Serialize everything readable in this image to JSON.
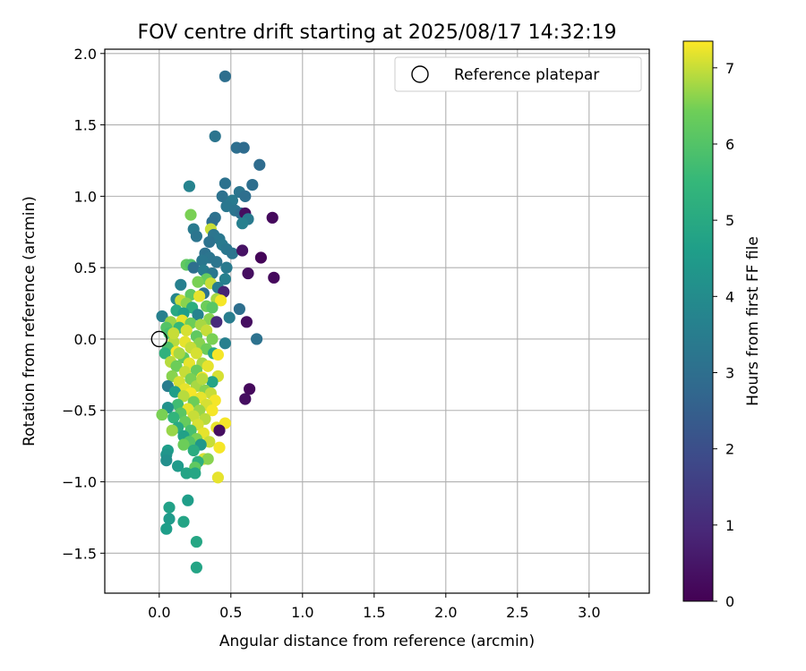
{
  "chart_data": {
    "type": "scatter",
    "title": "FOV centre drift starting at 2025/08/17 14:32:19",
    "xlabel": "Angular distance from reference (arcmin)",
    "ylabel": "Rotation from reference (arcmin)",
    "xlim": [
      -0.38,
      3.42
    ],
    "ylim": [
      -1.78,
      2.03
    ],
    "x_ticks": [
      "0.0",
      "0.5",
      "1.0",
      "1.5",
      "2.0",
      "2.5",
      "3.0"
    ],
    "x_tick_values": [
      0,
      0.5,
      1.0,
      1.5,
      2.0,
      2.5,
      3.0
    ],
    "y_ticks": [
      "2.0",
      "1.5",
      "1.0",
      "0.5",
      "0.0",
      "−0.5",
      "−1.0",
      "−1.5"
    ],
    "y_tick_values": [
      2.0,
      1.5,
      1.0,
      0.5,
      0.0,
      -0.5,
      -1.0,
      -1.5
    ],
    "grid": true,
    "legend": {
      "position": "top-right",
      "entries": [
        "Reference platepar"
      ]
    },
    "reference_point": {
      "x": 0.0,
      "y": 0.0
    },
    "colorbar": {
      "label": "Hours from first FF file",
      "min": 0,
      "max": 7.35,
      "colormap": "viridis",
      "ticks": [
        "0",
        "1",
        "2",
        "3",
        "4",
        "5",
        "6",
        "7"
      ],
      "tick_values": [
        0,
        1,
        2,
        3,
        4,
        5,
        6,
        7
      ]
    },
    "points": [
      {
        "x": 0.46,
        "y": 1.84,
        "t": 3.0
      },
      {
        "x": 0.39,
        "y": 1.42,
        "t": 3.2
      },
      {
        "x": 0.54,
        "y": 1.34,
        "t": 3.0
      },
      {
        "x": 0.59,
        "y": 1.34,
        "t": 2.9
      },
      {
        "x": 0.7,
        "y": 1.22,
        "t": 2.9
      },
      {
        "x": 0.46,
        "y": 1.09,
        "t": 3.1
      },
      {
        "x": 0.65,
        "y": 1.08,
        "t": 3.0
      },
      {
        "x": 0.21,
        "y": 1.07,
        "t": 3.7
      },
      {
        "x": 0.56,
        "y": 1.03,
        "t": 3.2
      },
      {
        "x": 0.6,
        "y": 1.0,
        "t": 3.0
      },
      {
        "x": 0.44,
        "y": 1.0,
        "t": 3.1
      },
      {
        "x": 0.51,
        "y": 0.97,
        "t": 3.4
      },
      {
        "x": 0.47,
        "y": 0.93,
        "t": 3.3
      },
      {
        "x": 0.53,
        "y": 0.9,
        "t": 3.2
      },
      {
        "x": 0.57,
        "y": 0.88,
        "t": 3.0
      },
      {
        "x": 0.6,
        "y": 0.88,
        "t": 0.3
      },
      {
        "x": 0.62,
        "y": 0.84,
        "t": 3.4
      },
      {
        "x": 0.79,
        "y": 0.85,
        "t": 0.2
      },
      {
        "x": 0.39,
        "y": 0.85,
        "t": 3.1
      },
      {
        "x": 0.37,
        "y": 0.82,
        "t": 3.0
      },
      {
        "x": 0.58,
        "y": 0.81,
        "t": 3.6
      },
      {
        "x": 0.22,
        "y": 0.87,
        "t": 6.5
      },
      {
        "x": 0.24,
        "y": 0.77,
        "t": 3.4
      },
      {
        "x": 0.36,
        "y": 0.77,
        "t": 7.0
      },
      {
        "x": 0.26,
        "y": 0.72,
        "t": 3.2
      },
      {
        "x": 0.38,
        "y": 0.73,
        "t": 3.2
      },
      {
        "x": 0.42,
        "y": 0.7,
        "t": 3.3
      },
      {
        "x": 0.35,
        "y": 0.68,
        "t": 3.1
      },
      {
        "x": 0.44,
        "y": 0.66,
        "t": 3.4
      },
      {
        "x": 0.47,
        "y": 0.63,
        "t": 3.3
      },
      {
        "x": 0.51,
        "y": 0.6,
        "t": 3.2
      },
      {
        "x": 0.58,
        "y": 0.62,
        "t": 0.4
      },
      {
        "x": 0.32,
        "y": 0.6,
        "t": 3.1
      },
      {
        "x": 0.35,
        "y": 0.57,
        "t": 3.2
      },
      {
        "x": 0.71,
        "y": 0.57,
        "t": 0.1
      },
      {
        "x": 0.3,
        "y": 0.55,
        "t": 3.3
      },
      {
        "x": 0.4,
        "y": 0.54,
        "t": 3.2
      },
      {
        "x": 0.19,
        "y": 0.52,
        "t": 6.2
      },
      {
        "x": 0.22,
        "y": 0.52,
        "t": 6.0
      },
      {
        "x": 0.47,
        "y": 0.5,
        "t": 3.4
      },
      {
        "x": 0.24,
        "y": 0.5,
        "t": 3.0
      },
      {
        "x": 0.31,
        "y": 0.48,
        "t": 3.5
      },
      {
        "x": 0.37,
        "y": 0.46,
        "t": 3.3
      },
      {
        "x": 0.62,
        "y": 0.46,
        "t": 0.3
      },
      {
        "x": 0.8,
        "y": 0.43,
        "t": 0.2
      },
      {
        "x": 0.46,
        "y": 0.42,
        "t": 3.6
      },
      {
        "x": 0.33,
        "y": 0.42,
        "t": 6.3
      },
      {
        "x": 0.27,
        "y": 0.4,
        "t": 6.5
      },
      {
        "x": 0.15,
        "y": 0.38,
        "t": 3.6
      },
      {
        "x": 0.36,
        "y": 0.39,
        "t": 7.0
      },
      {
        "x": 0.41,
        "y": 0.36,
        "t": 3.5
      },
      {
        "x": 0.45,
        "y": 0.33,
        "t": 0.8
      },
      {
        "x": 0.31,
        "y": 0.32,
        "t": 3.1
      },
      {
        "x": 0.22,
        "y": 0.31,
        "t": 6.2
      },
      {
        "x": 0.28,
        "y": 0.3,
        "t": 7.2
      },
      {
        "x": 0.12,
        "y": 0.28,
        "t": 3.8
      },
      {
        "x": 0.15,
        "y": 0.27,
        "t": 7.0
      },
      {
        "x": 0.4,
        "y": 0.28,
        "t": 6.8
      },
      {
        "x": 0.43,
        "y": 0.27,
        "t": 7.3
      },
      {
        "x": 0.19,
        "y": 0.25,
        "t": 6.6
      },
      {
        "x": 0.33,
        "y": 0.23,
        "t": 6.4
      },
      {
        "x": 0.23,
        "y": 0.22,
        "t": 5.2
      },
      {
        "x": 0.37,
        "y": 0.22,
        "t": 6.1
      },
      {
        "x": 0.56,
        "y": 0.21,
        "t": 3.0
      },
      {
        "x": 0.12,
        "y": 0.2,
        "t": 5.0
      },
      {
        "x": 0.17,
        "y": 0.18,
        "t": 4.6
      },
      {
        "x": 0.27,
        "y": 0.17,
        "t": 3.7
      },
      {
        "x": 0.02,
        "y": 0.16,
        "t": 3.6
      },
      {
        "x": 0.49,
        "y": 0.15,
        "t": 3.5
      },
      {
        "x": 0.35,
        "y": 0.14,
        "t": 6.6
      },
      {
        "x": 0.16,
        "y": 0.13,
        "t": 7.2
      },
      {
        "x": 0.4,
        "y": 0.12,
        "t": 1.0
      },
      {
        "x": 0.61,
        "y": 0.12,
        "t": 0.3
      },
      {
        "x": 0.08,
        "y": 0.12,
        "t": 6.7
      },
      {
        "x": 0.22,
        "y": 0.11,
        "t": 6.4
      },
      {
        "x": 0.29,
        "y": 0.1,
        "t": 6.8
      },
      {
        "x": 0.05,
        "y": 0.08,
        "t": 6.0
      },
      {
        "x": 0.14,
        "y": 0.08,
        "t": 5.5
      },
      {
        "x": 0.19,
        "y": 0.06,
        "t": 7.1
      },
      {
        "x": 0.33,
        "y": 0.06,
        "t": 7.0
      },
      {
        "x": 0.07,
        "y": 0.04,
        "t": 5.8
      },
      {
        "x": 0.26,
        "y": 0.02,
        "t": 6.2
      },
      {
        "x": 0.37,
        "y": 0.0,
        "t": 6.5
      },
      {
        "x": 0.68,
        "y": 0.0,
        "t": 3.1
      },
      {
        "x": 0.1,
        "y": -0.02,
        "t": 6.9
      },
      {
        "x": 0.18,
        "y": -0.02,
        "t": 7.2
      },
      {
        "x": 0.28,
        "y": -0.03,
        "t": 6.6
      },
      {
        "x": 0.46,
        "y": -0.03,
        "t": 3.6
      },
      {
        "x": 0.06,
        "y": -0.06,
        "t": 5.9
      },
      {
        "x": 0.22,
        "y": -0.06,
        "t": 7.0
      },
      {
        "x": 0.33,
        "y": -0.07,
        "t": 6.4
      },
      {
        "x": 0.12,
        "y": -0.09,
        "t": 7.3
      },
      {
        "x": 0.04,
        "y": -0.1,
        "t": 5.3
      },
      {
        "x": 0.26,
        "y": -0.1,
        "t": 7.1
      },
      {
        "x": 0.38,
        "y": -0.1,
        "t": 4.9
      },
      {
        "x": 0.41,
        "y": -0.11,
        "t": 7.3
      },
      {
        "x": 0.17,
        "y": -0.13,
        "t": 6.2
      },
      {
        "x": 0.08,
        "y": -0.16,
        "t": 6.9
      },
      {
        "x": 0.21,
        "y": -0.17,
        "t": 7.2
      },
      {
        "x": 0.3,
        "y": -0.17,
        "t": 6.8
      },
      {
        "x": 0.12,
        "y": -0.19,
        "t": 6.4
      },
      {
        "x": 0.34,
        "y": -0.19,
        "t": 7.2
      },
      {
        "x": 0.26,
        "y": -0.22,
        "t": 6.3
      },
      {
        "x": 0.18,
        "y": -0.23,
        "t": 7.0
      },
      {
        "x": 0.41,
        "y": -0.26,
        "t": 7.1
      },
      {
        "x": 0.09,
        "y": -0.26,
        "t": 6.6
      },
      {
        "x": 0.3,
        "y": -0.27,
        "t": 7.3
      },
      {
        "x": 0.22,
        "y": -0.28,
        "t": 6.5
      },
      {
        "x": 0.14,
        "y": -0.3,
        "t": 7.1
      },
      {
        "x": 0.37,
        "y": -0.3,
        "t": 4.8
      },
      {
        "x": 0.06,
        "y": -0.33,
        "t": 3.5
      },
      {
        "x": 0.26,
        "y": -0.33,
        "t": 6.8
      },
      {
        "x": 0.18,
        "y": -0.35,
        "t": 7.2
      },
      {
        "x": 0.32,
        "y": -0.36,
        "t": 6.6
      },
      {
        "x": 0.63,
        "y": -0.35,
        "t": 0.2
      },
      {
        "x": 0.11,
        "y": -0.37,
        "t": 4.6
      },
      {
        "x": 0.22,
        "y": -0.38,
        "t": 7.3
      },
      {
        "x": 0.36,
        "y": -0.38,
        "t": 7.0
      },
      {
        "x": 0.17,
        "y": -0.4,
        "t": 6.9
      },
      {
        "x": 0.29,
        "y": -0.41,
        "t": 7.2
      },
      {
        "x": 0.6,
        "y": -0.42,
        "t": 0.3
      },
      {
        "x": 0.39,
        "y": -0.43,
        "t": 7.3
      },
      {
        "x": 0.24,
        "y": -0.44,
        "t": 6.4
      },
      {
        "x": 0.13,
        "y": -0.46,
        "t": 5.7
      },
      {
        "x": 0.33,
        "y": -0.46,
        "t": 7.1
      },
      {
        "x": 0.06,
        "y": -0.48,
        "t": 4.2
      },
      {
        "x": 0.2,
        "y": -0.49,
        "t": 7.2
      },
      {
        "x": 0.28,
        "y": -0.5,
        "t": 6.7
      },
      {
        "x": 0.37,
        "y": -0.5,
        "t": 7.3
      },
      {
        "x": 0.15,
        "y": -0.52,
        "t": 6.1
      },
      {
        "x": 0.02,
        "y": -0.53,
        "t": 6.5
      },
      {
        "x": 0.24,
        "y": -0.54,
        "t": 7.0
      },
      {
        "x": 0.1,
        "y": -0.55,
        "t": 5.4
      },
      {
        "x": 0.32,
        "y": -0.56,
        "t": 6.9
      },
      {
        "x": 0.18,
        "y": -0.58,
        "t": 6.3
      },
      {
        "x": 0.46,
        "y": -0.59,
        "t": 7.3
      },
      {
        "x": 0.27,
        "y": -0.6,
        "t": 7.1
      },
      {
        "x": 0.13,
        "y": -0.62,
        "t": 5.0
      },
      {
        "x": 0.4,
        "y": -0.62,
        "t": 7.2
      },
      {
        "x": 0.09,
        "y": -0.64,
        "t": 6.7
      },
      {
        "x": 0.22,
        "y": -0.64,
        "t": 5.8
      },
      {
        "x": 0.42,
        "y": -0.64,
        "t": 0.3
      },
      {
        "x": 0.31,
        "y": -0.66,
        "t": 7.2
      },
      {
        "x": 0.17,
        "y": -0.68,
        "t": 4.7
      },
      {
        "x": 0.26,
        "y": -0.7,
        "t": 6.5
      },
      {
        "x": 0.35,
        "y": -0.72,
        "t": 7.0
      },
      {
        "x": 0.21,
        "y": -0.72,
        "t": 6.0
      },
      {
        "x": 0.29,
        "y": -0.74,
        "t": 4.4
      },
      {
        "x": 0.17,
        "y": -0.74,
        "t": 6.4
      },
      {
        "x": 0.42,
        "y": -0.76,
        "t": 7.3
      },
      {
        "x": 0.24,
        "y": -0.78,
        "t": 5.1
      },
      {
        "x": 0.06,
        "y": -0.78,
        "t": 4.6
      },
      {
        "x": 0.05,
        "y": -0.81,
        "t": 4.3
      },
      {
        "x": 0.05,
        "y": -0.85,
        "t": 4.1
      },
      {
        "x": 0.31,
        "y": -0.84,
        "t": 7.1
      },
      {
        "x": 0.34,
        "y": -0.84,
        "t": 6.6
      },
      {
        "x": 0.27,
        "y": -0.86,
        "t": 5.2
      },
      {
        "x": 0.13,
        "y": -0.89,
        "t": 4.5
      },
      {
        "x": 0.25,
        "y": -0.9,
        "t": 6.2
      },
      {
        "x": 0.19,
        "y": -0.94,
        "t": 4.8
      },
      {
        "x": 0.25,
        "y": -0.94,
        "t": 4.9
      },
      {
        "x": 0.41,
        "y": -0.97,
        "t": 7.2
      },
      {
        "x": 0.2,
        "y": -1.13,
        "t": 4.6
      },
      {
        "x": 0.07,
        "y": -1.18,
        "t": 4.7
      },
      {
        "x": 0.07,
        "y": -1.26,
        "t": 4.5
      },
      {
        "x": 0.17,
        "y": -1.28,
        "t": 4.8
      },
      {
        "x": 0.05,
        "y": -1.33,
        "t": 4.6
      },
      {
        "x": 0.26,
        "y": -1.42,
        "t": 4.9
      },
      {
        "x": 0.26,
        "y": -1.6,
        "t": 4.8
      },
      {
        "x": 0.3,
        "y": -0.28,
        "t": 6.9
      },
      {
        "x": 0.14,
        "y": -0.1,
        "t": 6.8
      },
      {
        "x": 0.1,
        "y": 0.04,
        "t": 7.0
      }
    ]
  }
}
